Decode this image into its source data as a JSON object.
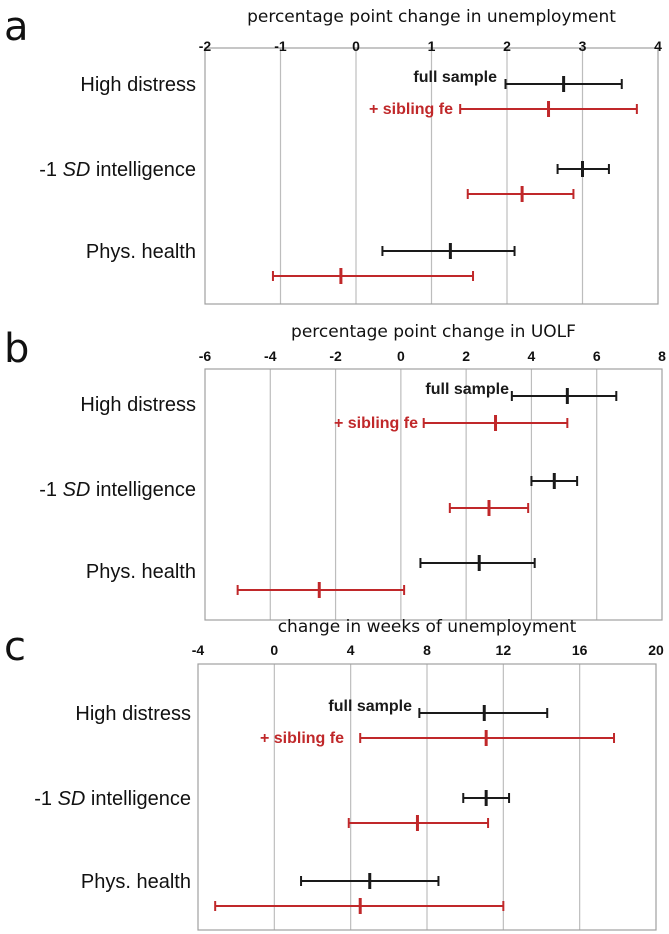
{
  "colors": {
    "full": "#1a1a1a",
    "sibling": "#c0282a",
    "grid": "#bdbdbd",
    "frame": "#a0a0a0"
  },
  "chart_data": [
    {
      "type": "errorbar",
      "panel": "a",
      "title": "percentage point change in unemployment",
      "xlim": [
        -2,
        4
      ],
      "ticks": [
        "-2",
        "-1",
        "0",
        "1",
        "2",
        "3",
        "4"
      ],
      "tick_values": [
        -2,
        -1,
        0,
        1,
        2,
        3,
        4
      ],
      "categories": [
        {
          "pre": "High distress",
          "sd": "",
          "post": ""
        },
        {
          "pre": "-1 ",
          "sd": "SD",
          "post": " intelligence"
        },
        {
          "pre": "Phys. health",
          "sd": "",
          "post": ""
        }
      ],
      "legend": [
        "full sample",
        "+ sibling fe"
      ],
      "series": [
        {
          "name": "full sample",
          "color": "full",
          "points": [
            {
              "est": 2.75,
              "lo": 1.98,
              "hi": 3.52
            },
            {
              "est": 3.0,
              "lo": 2.67,
              "hi": 3.35
            },
            {
              "est": 1.25,
              "lo": 0.35,
              "hi": 2.1
            }
          ]
        },
        {
          "name": "+ sibling fe",
          "color": "sibling",
          "points": [
            {
              "est": 2.55,
              "lo": 1.38,
              "hi": 3.72
            },
            {
              "est": 2.2,
              "lo": 1.48,
              "hi": 2.88
            },
            {
              "est": -0.2,
              "lo": -1.1,
              "hi": 1.55
            }
          ]
        }
      ]
    },
    {
      "type": "errorbar",
      "panel": "b",
      "title": "percentage point change in UOLF",
      "xlim": [
        -6,
        8
      ],
      "ticks": [
        "-6",
        "-4",
        "-2",
        "0",
        "2",
        "4",
        "6",
        "8"
      ],
      "tick_values": [
        -6,
        -4,
        -2,
        0,
        2,
        4,
        6,
        8
      ],
      "categories": [
        {
          "pre": "High distress",
          "sd": "",
          "post": ""
        },
        {
          "pre": "-1 ",
          "sd": "SD",
          "post": " intelligence"
        },
        {
          "pre": "Phys. health",
          "sd": "",
          "post": ""
        }
      ],
      "legend": [
        "full sample",
        "+ sibling fe"
      ],
      "series": [
        {
          "name": "full sample",
          "color": "full",
          "points": [
            {
              "est": 5.1,
              "lo": 3.4,
              "hi": 6.6
            },
            {
              "est": 4.7,
              "lo": 4.0,
              "hi": 5.4
            },
            {
              "est": 2.4,
              "lo": 0.6,
              "hi": 4.1
            }
          ]
        },
        {
          "name": "+ sibling fe",
          "color": "sibling",
          "points": [
            {
              "est": 2.9,
              "lo": 0.7,
              "hi": 5.1
            },
            {
              "est": 2.7,
              "lo": 1.5,
              "hi": 3.9
            },
            {
              "est": -2.5,
              "lo": -5.0,
              "hi": 0.1
            }
          ]
        }
      ]
    },
    {
      "type": "errorbar",
      "panel": "c",
      "title": "change in weeks of unemployment",
      "xlim": [
        -4,
        20
      ],
      "ticks": [
        "-4",
        "0",
        "4",
        "8",
        "12",
        "16",
        "20"
      ],
      "tick_values": [
        -4,
        0,
        4,
        8,
        12,
        16,
        20
      ],
      "categories": [
        {
          "pre": "High distress",
          "sd": "",
          "post": ""
        },
        {
          "pre": "-1 ",
          "sd": "SD",
          "post": " intelligence"
        },
        {
          "pre": "Phys. health",
          "sd": "",
          "post": ""
        }
      ],
      "legend": [
        "full sample",
        "+ sibling fe"
      ],
      "series": [
        {
          "name": "full sample",
          "color": "full",
          "points": [
            {
              "est": 11.0,
              "lo": 7.6,
              "hi": 14.3
            },
            {
              "est": 11.1,
              "lo": 9.9,
              "hi": 12.3
            },
            {
              "est": 5.0,
              "lo": 1.4,
              "hi": 8.6
            }
          ]
        },
        {
          "name": "+ sibling fe",
          "color": "sibling",
          "points": [
            {
              "est": 11.1,
              "lo": 4.5,
              "hi": 17.8
            },
            {
              "est": 7.5,
              "lo": 3.9,
              "hi": 11.2
            },
            {
              "est": 4.5,
              "lo": -3.1,
              "hi": 12.0
            }
          ]
        }
      ]
    }
  ]
}
